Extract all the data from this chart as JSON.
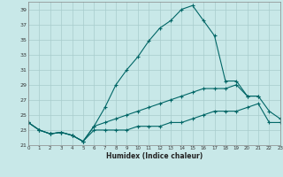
{
  "xlabel": "Humidex (Indice chaleur)",
  "bg_color": "#c8e8e8",
  "grid_color": "#a8cccc",
  "line_color": "#006666",
  "xlim": [
    0,
    23
  ],
  "ylim": [
    21,
    40
  ],
  "yticks": [
    21,
    23,
    25,
    27,
    29,
    31,
    33,
    35,
    37,
    39
  ],
  "xticks": [
    0,
    1,
    2,
    3,
    4,
    5,
    6,
    7,
    8,
    9,
    10,
    11,
    12,
    13,
    14,
    15,
    16,
    17,
    18,
    19,
    20,
    21,
    22,
    23
  ],
  "curve1_x": [
    0,
    1,
    2,
    3,
    4,
    5,
    6,
    7,
    8,
    9,
    10,
    11,
    12,
    13,
    14,
    15,
    16,
    17,
    18,
    19,
    20,
    21
  ],
  "curve1_y": [
    24.0,
    23.0,
    22.5,
    22.7,
    22.3,
    21.5,
    23.5,
    26.0,
    29.0,
    31.0,
    32.7,
    34.8,
    36.5,
    37.5,
    39.0,
    39.5,
    37.5,
    35.5,
    29.5,
    29.5,
    27.5,
    27.5
  ],
  "curve2_x": [
    0,
    1,
    2,
    3,
    4,
    5,
    6,
    7,
    8,
    9,
    10,
    11,
    12,
    13,
    14,
    15,
    16,
    17,
    18,
    19,
    20,
    21,
    22,
    23
  ],
  "curve2_y": [
    24.0,
    23.0,
    22.5,
    22.7,
    22.3,
    21.5,
    23.5,
    24.0,
    24.5,
    25.0,
    25.5,
    26.0,
    26.5,
    27.0,
    27.5,
    28.0,
    28.5,
    28.5,
    28.5,
    29.0,
    27.5,
    27.5,
    25.5,
    24.5
  ],
  "curve3_x": [
    0,
    1,
    2,
    3,
    4,
    5,
    6,
    7,
    8,
    9,
    10,
    11,
    12,
    13,
    14,
    15,
    16,
    17,
    18,
    19,
    20,
    21,
    22,
    23
  ],
  "curve3_y": [
    24.0,
    23.0,
    22.5,
    22.7,
    22.3,
    21.5,
    23.0,
    23.0,
    23.0,
    23.0,
    23.5,
    23.5,
    23.5,
    24.0,
    24.0,
    24.5,
    25.0,
    25.5,
    25.5,
    25.5,
    26.0,
    26.5,
    24.0,
    24.0
  ]
}
